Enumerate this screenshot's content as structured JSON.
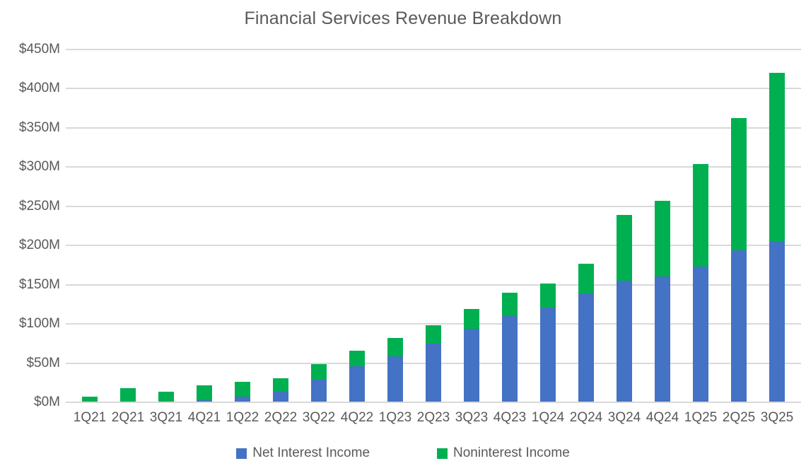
{
  "title": "Financial Services Revenue Breakdown",
  "chart_data": {
    "type": "bar",
    "stacked": true,
    "title": "Financial Services Revenue Breakdown",
    "categories": [
      "1Q21",
      "2Q21",
      "3Q21",
      "4Q21",
      "1Q22",
      "2Q22",
      "3Q22",
      "4Q22",
      "1Q23",
      "2Q23",
      "3Q23",
      "4Q23",
      "1Q24",
      "2Q24",
      "3Q24",
      "4Q24",
      "1Q25",
      "2Q25",
      "3Q25"
    ],
    "series": [
      {
        "name": "Net Interest Income",
        "color": "#4472C4",
        "values": [
          0,
          0,
          0,
          2,
          6,
          13,
          28,
          45,
          58,
          74,
          93,
          109,
          120,
          138,
          154,
          160,
          172,
          193,
          204
        ]
      },
      {
        "name": "Noninterest Income",
        "color": "#00B050",
        "values": [
          6,
          17,
          13,
          19,
          19,
          17,
          20,
          20,
          23,
          23,
          25,
          30,
          31,
          38,
          84,
          96,
          131,
          169,
          215
        ]
      }
    ],
    "totals": [
      6,
      17,
      13,
      21,
      25,
      30,
      48,
      65,
      81,
      97,
      118,
      139,
      151,
      176,
      238,
      256,
      303,
      362,
      419
    ],
    "ylim": [
      0,
      450
    ],
    "ytick_step": 50,
    "y_tick_labels": [
      "$0M",
      "$50M",
      "$100M",
      "$150M",
      "$200M",
      "$250M",
      "$300M",
      "$350M",
      "$400M",
      "$450M"
    ],
    "grid": true,
    "legend_position": "bottom"
  },
  "colors": {
    "gridline": "#D9D9D9",
    "axis_text": "#595959",
    "title_text": "#595959",
    "background": "#FFFFFF"
  }
}
